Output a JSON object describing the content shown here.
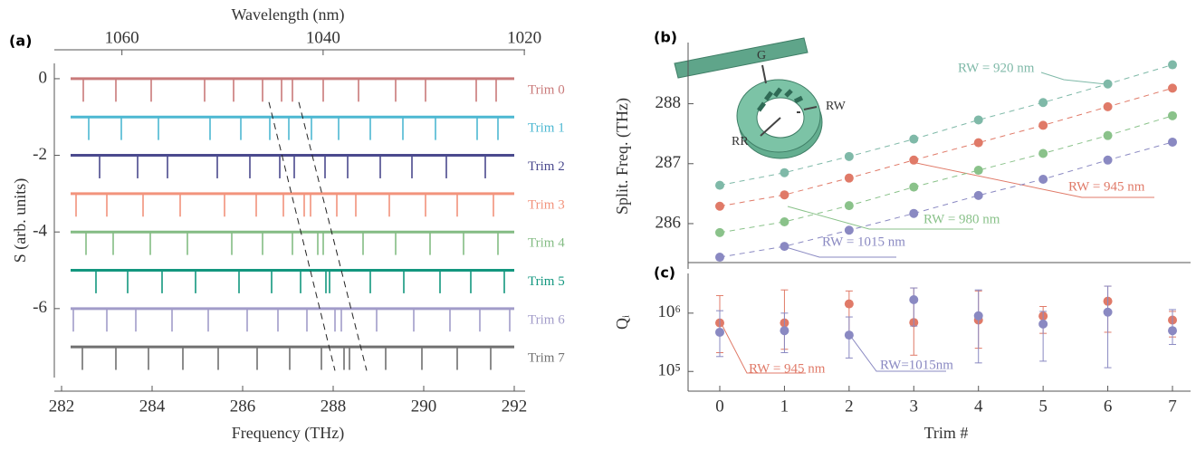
{
  "chart_data": [
    {
      "type": "line",
      "panel_label": "(a)",
      "x_label": "Frequency (THz)",
      "x2_label": "Wavelength (nm)",
      "y_label": "S (arb. units)",
      "xlim": [
        282,
        292
      ],
      "xticks": [
        282,
        284,
        286,
        288,
        290,
        292
      ],
      "x2lim": [
        1066,
        1021
      ],
      "x2ticks": [
        1060,
        1040,
        1020
      ],
      "ylim": [
        -7.8,
        0.4
      ],
      "yticks": [
        0,
        -2,
        -4,
        -6
      ],
      "dip_depth": 0.6,
      "series": [
        {
          "name": "Trim 0",
          "color": "#c97a7a",
          "offset": 0,
          "dips": [
            282.48,
            283.2,
            283.98,
            285.16,
            285.8,
            286.44,
            286.86,
            287.1,
            287.78,
            288.56,
            289.38,
            290.04,
            291.16,
            291.6
          ]
        },
        {
          "name": "Trim 1",
          "color": "#4db8d2",
          "offset": -1,
          "dips": [
            282.6,
            283.32,
            284.14,
            285.28,
            285.96,
            286.6,
            287.02,
            287.52,
            288.12,
            288.82,
            289.54,
            290.26,
            291.18,
            291.64
          ]
        },
        {
          "name": "Trim 2",
          "color": "#4b4a8e",
          "offset": -2,
          "dips": [
            282.84,
            283.68,
            284.34,
            285.44,
            286.16,
            286.82,
            287.14,
            287.82,
            288.32,
            289.04,
            289.74,
            290.5,
            291.36
          ]
        },
        {
          "name": "Trim 3",
          "color": "#f2937c",
          "offset": -3,
          "dips": [
            282.32,
            283.0,
            283.8,
            284.62,
            285.6,
            286.3,
            286.9,
            287.36,
            287.5,
            288.08,
            288.5,
            289.24,
            290.04,
            290.74,
            291.54
          ]
        },
        {
          "name": "Trim 4",
          "color": "#84bc84",
          "offset": -4,
          "dips": [
            282.54,
            283.14,
            283.96,
            284.78,
            285.76,
            286.44,
            287.1,
            287.66,
            287.78,
            288.66,
            289.38,
            290.14,
            290.88,
            291.64
          ]
        },
        {
          "name": "Trim 5",
          "color": "#13977f",
          "offset": -5,
          "dips": [
            282.76,
            283.46,
            284.22,
            284.96,
            285.92,
            286.64,
            287.28,
            287.84,
            287.92,
            288.82,
            289.56,
            290.36,
            291.04,
            291.78
          ]
        },
        {
          "name": "Trim 6",
          "color": "#a29cc9",
          "offset": -6,
          "dips": [
            282.26,
            283.0,
            283.64,
            284.44,
            285.24,
            286.1,
            286.78,
            287.42,
            288.04,
            288.18,
            288.96,
            289.78,
            290.58,
            291.24,
            291.9
          ]
        },
        {
          "name": "Trim 7",
          "color": "#707070",
          "offset": -7,
          "dips": [
            282.46,
            283.2,
            283.92,
            284.68,
            285.46,
            286.32,
            287.04,
            287.74,
            288.24,
            288.36,
            289.16,
            289.96,
            290.74,
            291.48
          ]
        }
      ],
      "guides": [
        {
          "x": [
            286.58,
            288.04
          ],
          "y": [
            -0.61,
            -7.62
          ]
        },
        {
          "x": [
            287.24,
            288.74
          ],
          "y": [
            -0.61,
            -7.62
          ]
        }
      ]
    },
    {
      "type": "scatter",
      "panel_label": "(b)",
      "y_label": "Split. Freq. (THz)",
      "fit_lines": true,
      "x": [
        0,
        1,
        2,
        3,
        4,
        5,
        6,
        7
      ],
      "xlim": [
        0,
        7
      ],
      "ylim": [
        285.35,
        288.9
      ],
      "yticks": [
        286,
        287,
        288
      ],
      "inset_labels": [
        "G",
        "RW",
        "RR"
      ],
      "series": [
        {
          "name": "RW = 920 nm",
          "color": "#7fb9a8",
          "values": [
            286.64,
            286.85,
            287.12,
            287.41,
            287.73,
            288.02,
            288.33,
            288.65
          ]
        },
        {
          "name": "RW = 945 nm",
          "color": "#e07a68",
          "values": [
            286.29,
            286.48,
            286.76,
            287.06,
            287.35,
            287.64,
            287.95,
            288.26
          ]
        },
        {
          "name": "RW = 980 nm",
          "color": "#8ac28a",
          "values": [
            285.85,
            286.03,
            286.3,
            286.61,
            286.89,
            287.17,
            287.47,
            287.8
          ]
        },
        {
          "name": "RW = 1015 nm",
          "color": "#8a89c2",
          "values": [
            285.44,
            285.62,
            285.89,
            286.17,
            286.47,
            286.74,
            287.06,
            287.36
          ]
        }
      ]
    },
    {
      "type": "scatter",
      "panel_label": "(c)",
      "y_label": "Qᵢ",
      "x_label": "Trim #",
      "ylog": true,
      "x": [
        0,
        1,
        2,
        3,
        4,
        5,
        6,
        7
      ],
      "xlim": [
        0,
        7
      ],
      "xticks": [
        0,
        1,
        2,
        3,
        4,
        5,
        6,
        7
      ],
      "ylim": [
        59000,
        3600000
      ],
      "yticks": [
        {
          "value": 100000,
          "label": "10⁵"
        },
        {
          "value": 1000000,
          "label": "10⁶"
        }
      ],
      "series": [
        {
          "name": "RW = 945 nm",
          "color": "#e07a68",
          "values": [
            680000,
            680000,
            1440000,
            690000,
            760000,
            890000,
            1600000,
            760000
          ],
          "err_low": [
            210000,
            240000,
            450000,
            190000,
            250000,
            450000,
            470000,
            390000
          ],
          "err_high": [
            2000000,
            2500000,
            2400000,
            2700000,
            2400000,
            1300000,
            2900000,
            1070000
          ]
        },
        {
          "name": "RW=1015nm",
          "color": "#8a89c2",
          "values": [
            470000,
            500000,
            420000,
            1700000,
            900000,
            650000,
            1040000,
            500000
          ],
          "err_low": [
            180000,
            210000,
            170000,
            600000,
            140000,
            150000,
            116000,
            290000
          ],
          "err_high": [
            1100000,
            1000000,
            860000,
            2700000,
            2500000,
            1070000,
            2900000,
            1150000
          ]
        }
      ]
    }
  ]
}
